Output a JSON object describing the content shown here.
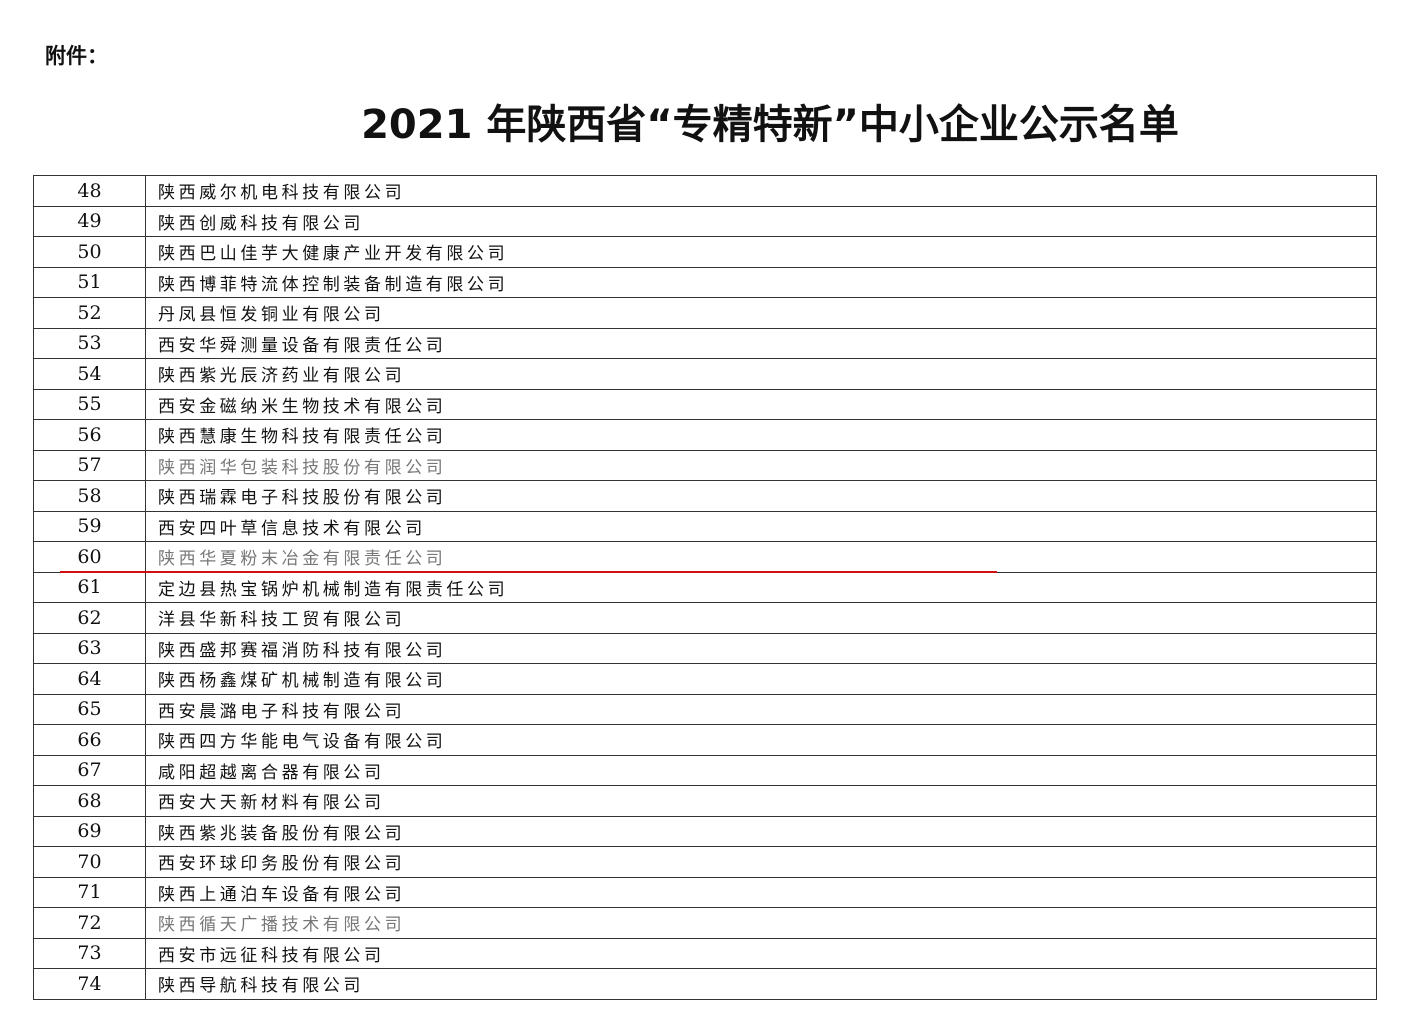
{
  "header": {
    "label": "附件：",
    "title": "2021 年陕西省“专精特新”中小企业公示名单"
  },
  "table": {
    "rows": [
      [
        48,
        "陕西威尔机电科技有限公司"
      ],
      [
        49,
        "陕西创威科技有限公司"
      ],
      [
        50,
        "陕西巴山佳芋大健康产业开发有限公司"
      ],
      [
        51,
        "陕西博菲特流体控制装备制造有限公司"
      ],
      [
        52,
        "丹凤县恒发铜业有限公司"
      ],
      [
        53,
        "西安华舜测量设备有限责任公司"
      ],
      [
        54,
        "陕西紫光辰济药业有限公司"
      ],
      [
        55,
        "西安金磁纳米生物技术有限公司"
      ],
      [
        56,
        "陕西慧康生物科技有限责任公司"
      ],
      [
        57,
        "陕西润华包装科技股份有限公司"
      ],
      [
        58,
        "陕西瑞霖电子科技股份有限公司"
      ],
      [
        59,
        "西安四叶草信息技术有限公司"
      ],
      [
        60,
        "陕西华夏粉末冶金有限责任公司"
      ],
      [
        61,
        "定边县热宝锅炉机械制造有限责任公司"
      ],
      [
        62,
        "洋县华新科技工贸有限公司"
      ],
      [
        63,
        "陕西盛邦赛福消防科技有限公司"
      ],
      [
        64,
        "陕西杨鑫煤矿机械制造有限公司"
      ],
      [
        65,
        "西安晨潞电子科技有限公司"
      ],
      [
        66,
        "陕西四方华能电气设备有限公司"
      ],
      [
        67,
        "咸阳超越离合器有限公司"
      ],
      [
        68,
        "西安大天新材料有限公司"
      ],
      [
        69,
        "陕西紫兆装备股份有限公司"
      ],
      [
        70,
        "西安环球印务股份有限公司"
      ],
      [
        71,
        "陕西上通泊车设备有限公司"
      ],
      [
        72,
        "陕西循天广播技术有限公司"
      ],
      [
        73,
        "西安市远征科技有限公司"
      ],
      [
        74,
        "陕西导航科技有限公司"
      ]
    ]
  }
}
